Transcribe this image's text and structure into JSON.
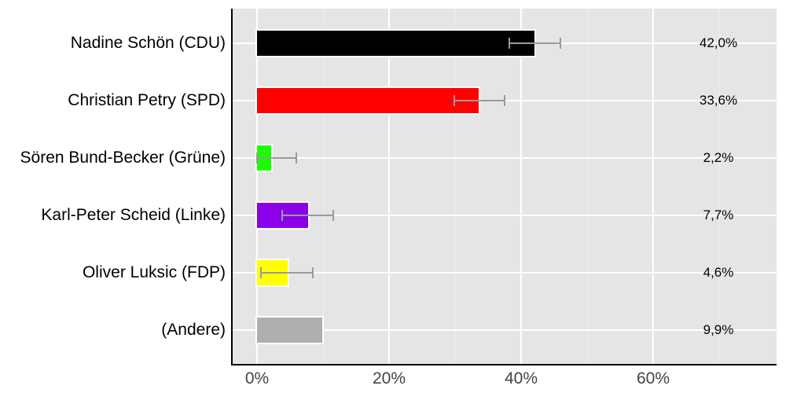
{
  "chart_data": {
    "type": "bar",
    "orientation": "horizontal",
    "title": "",
    "xlabel": "",
    "ylabel": "",
    "categories": [
      "Nadine Schön (CDU)",
      "Christian Petry (SPD)",
      "Sören Bund-Becker (Grüne)",
      "Karl-Peter Scheid (Linke)",
      "Oliver Luksic (FDP)",
      "(Andere)"
    ],
    "values": [
      42.0,
      33.6,
      2.2,
      7.7,
      4.6,
      9.9
    ],
    "value_labels": [
      "42,0%",
      "33,6%",
      "2,2%",
      "7,7%",
      "4,6%",
      "9,9%"
    ],
    "colors": [
      "#000000",
      "#ff0000",
      "#1aff00",
      "#8b00e8",
      "#ffff00",
      "#aeaeae"
    ],
    "error_bars": [
      {
        "low": 38.2,
        "high": 46.0
      },
      {
        "low": 29.9,
        "high": 37.5
      },
      {
        "low": 0.0,
        "high": 5.9
      },
      {
        "low": 3.8,
        "high": 11.5
      },
      {
        "low": 0.6,
        "high": 8.4
      },
      null
    ],
    "x_ticks": [
      0,
      20,
      40,
      60
    ],
    "x_tick_labels": [
      "0%",
      "20%",
      "40%",
      "60%"
    ],
    "xlim": [
      -3.7,
      78.7
    ],
    "grid": true,
    "legend": null
  }
}
